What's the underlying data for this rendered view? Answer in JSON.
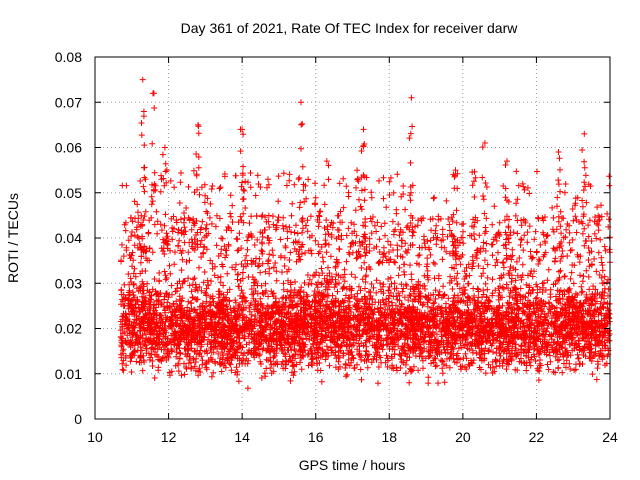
{
  "chart_data": {
    "type": "scatter",
    "title": "Day 361 of 2021, Rate Of TEC Index for receiver darw",
    "xlabel": "GPS time / hours",
    "ylabel": "ROTI / TECUs",
    "xlim": [
      10,
      24
    ],
    "ylim": [
      0,
      0.08
    ],
    "x_ticks": [
      10,
      12,
      14,
      16,
      18,
      20,
      22,
      24
    ],
    "y_ticks": [
      0,
      0.01,
      0.02,
      0.03,
      0.04,
      0.05,
      0.06,
      0.07,
      0.08
    ],
    "x_tick_labels": [
      "10",
      "12",
      "14",
      "16",
      "18",
      "20",
      "22",
      "24"
    ],
    "y_tick_labels": [
      "0",
      "0.01",
      "0.02",
      "0.03",
      "0.04",
      "0.05",
      "0.06",
      "0.07",
      "0.08"
    ],
    "grid": true,
    "marker": "+",
    "color": "#ff0000",
    "series": [
      {
        "x_start": 10.7,
        "x_end": 24.0,
        "approx_points": 9000,
        "typical_range": [
          0.005,
          0.03
        ],
        "peaks": [
          {
            "x": 11.3,
            "y": 0.075
          },
          {
            "x": 11.6,
            "y": 0.072
          },
          {
            "x": 11.9,
            "y": 0.06
          },
          {
            "x": 12.8,
            "y": 0.065
          },
          {
            "x": 14.0,
            "y": 0.064
          },
          {
            "x": 15.6,
            "y": 0.07
          },
          {
            "x": 16.3,
            "y": 0.057
          },
          {
            "x": 17.3,
            "y": 0.064
          },
          {
            "x": 18.6,
            "y": 0.071
          },
          {
            "x": 19.8,
            "y": 0.055
          },
          {
            "x": 20.6,
            "y": 0.061
          },
          {
            "x": 21.2,
            "y": 0.057
          },
          {
            "x": 22.6,
            "y": 0.059
          },
          {
            "x": 23.3,
            "y": 0.063
          }
        ]
      }
    ]
  }
}
